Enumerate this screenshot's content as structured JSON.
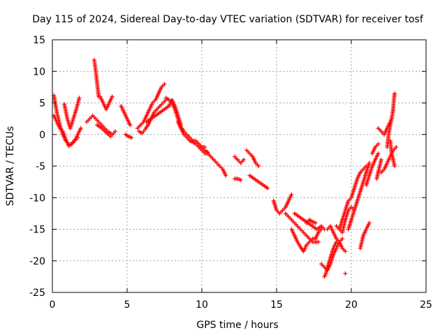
{
  "chart_data": {
    "type": "scatter",
    "title": "Day 115 of 2024, Sidereal Day-to-day VTEC variation (SDTVAR) for receiver tosf",
    "xlabel": "GPS time / hours",
    "ylabel": "SDTVAR / TECUs",
    "xlim": [
      0,
      25
    ],
    "ylim": [
      -25,
      15
    ],
    "xticks": [
      0,
      5,
      10,
      15,
      20,
      25
    ],
    "yticks": [
      -25,
      -20,
      -15,
      -10,
      -5,
      0,
      5,
      10,
      15
    ],
    "grid": true,
    "marker": "+",
    "color": "#ff0000",
    "series": [
      {
        "name": "s1",
        "x": [
          0.1,
          0.3,
          0.5,
          0.7,
          0.9,
          1.1,
          1.3,
          1.5,
          1.7
        ],
        "y": [
          6.2,
          3.5,
          1.5,
          0.0,
          -1.0,
          -1.6,
          -1.5,
          -1.0,
          -0.5
        ]
      },
      {
        "name": "s2",
        "x": [
          0.1,
          0.3,
          0.5,
          0.7,
          0.9,
          1.1,
          1.3,
          1.6,
          1.9
        ],
        "y": [
          3.0,
          2.0,
          1.0,
          0.5,
          -0.8,
          -1.8,
          -1.5,
          -0.5,
          1.0
        ]
      },
      {
        "name": "s3",
        "x": [
          0.8,
          1.0,
          1.2,
          1.4,
          1.6,
          1.8
        ],
        "y": [
          4.8,
          2.5,
          1.0,
          2.5,
          4.0,
          5.8
        ]
      },
      {
        "name": "s4",
        "x": [
          2.3,
          2.5,
          2.7,
          2.9,
          3.1,
          3.3,
          3.5,
          3.7,
          3.9
        ],
        "y": [
          2.0,
          2.5,
          3.0,
          2.5,
          2.0,
          1.5,
          1.0,
          0.5,
          0.2
        ]
      },
      {
        "name": "s5",
        "x": [
          2.8,
          2.85,
          2.9,
          2.95,
          3.0,
          3.05,
          3.1
        ],
        "y": [
          11.8,
          11.0,
          10.0,
          9.0,
          8.0,
          7.0,
          6.0
        ]
      },
      {
        "name": "s6",
        "x": [
          3.2,
          3.4,
          3.6,
          3.8,
          4.0
        ],
        "y": [
          6.0,
          5.0,
          4.0,
          5.0,
          6.0
        ]
      },
      {
        "name": "s7",
        "x": [
          3.0,
          3.3,
          3.6,
          3.9,
          4.2
        ],
        "y": [
          1.5,
          1.0,
          0.3,
          -0.3,
          0.5
        ]
      },
      {
        "name": "s8",
        "x": [
          4.6,
          4.8,
          5.0,
          5.2
        ],
        "y": [
          4.5,
          3.5,
          2.5,
          1.5
        ]
      },
      {
        "name": "s9",
        "x": [
          4.9,
          5.1,
          5.3
        ],
        "y": [
          0.0,
          -0.3,
          -0.5
        ]
      },
      {
        "name": "s10",
        "x": [
          5.7,
          5.9,
          6.1,
          6.3,
          6.5,
          6.7,
          6.9,
          7.1,
          7.3,
          7.5
        ],
        "y": [
          1.0,
          1.5,
          2.0,
          3.0,
          4.0,
          5.0,
          5.5,
          6.5,
          7.5,
          8.0
        ]
      },
      {
        "name": "s11",
        "x": [
          5.8,
          6.0,
          6.2,
          6.4,
          6.6,
          6.8,
          7.0,
          7.2,
          7.4,
          7.6
        ],
        "y": [
          0.5,
          0.2,
          0.8,
          1.5,
          2.5,
          3.5,
          4.0,
          4.5,
          5.0,
          5.5
        ]
      },
      {
        "name": "s12",
        "x": [
          6.3,
          6.6,
          6.9,
          7.2,
          7.5,
          7.8,
          8.0,
          8.2,
          8.4,
          8.6
        ],
        "y": [
          2.0,
          2.5,
          3.0,
          3.5,
          4.0,
          4.5,
          5.5,
          4.5,
          3.0,
          1.5
        ]
      },
      {
        "name": "s13",
        "x": [
          7.6,
          7.8,
          8.0,
          8.2,
          8.4,
          8.6,
          8.8,
          9.0,
          9.2,
          9.4,
          9.6,
          9.8,
          10.0,
          10.2
        ],
        "y": [
          5.8,
          5.5,
          5.0,
          4.0,
          2.5,
          1.2,
          0.5,
          0.0,
          -0.5,
          -1.0,
          -1.0,
          -1.5,
          -2.0,
          -2.0
        ]
      },
      {
        "name": "s14",
        "x": [
          8.4,
          8.6,
          8.8,
          9.0,
          9.2,
          9.4,
          9.6,
          9.8,
          10.0,
          10.2,
          10.4
        ],
        "y": [
          2.0,
          1.0,
          0.0,
          -0.5,
          -1.0,
          -1.2,
          -1.5,
          -2.0,
          -2.5,
          -3.0,
          -3.0
        ]
      },
      {
        "name": "s15",
        "x": [
          10.4,
          10.6,
          10.8,
          11.0,
          11.2,
          11.4,
          11.6
        ],
        "y": [
          -3.0,
          -3.5,
          -4.0,
          -4.5,
          -5.0,
          -5.5,
          -6.5
        ]
      },
      {
        "name": "s16",
        "x": [
          12.2,
          12.4,
          12.6
        ],
        "y": [
          -7.0,
          -7.0,
          -7.2
        ]
      },
      {
        "name": "s17",
        "x": [
          12.2,
          12.4,
          12.6,
          12.8
        ],
        "y": [
          -3.5,
          -4.0,
          -4.5,
          -4.0
        ]
      },
      {
        "name": "s18",
        "x": [
          13.0,
          13.2,
          13.4,
          13.6,
          13.8
        ],
        "y": [
          -2.5,
          -3.0,
          -3.5,
          -4.5,
          -5.0
        ]
      },
      {
        "name": "s19",
        "x": [
          13.2,
          13.5,
          13.8,
          14.1,
          14.4
        ],
        "y": [
          -6.5,
          -7.0,
          -7.5,
          -8.0,
          -8.5
        ]
      },
      {
        "name": "s20",
        "x": [
          14.8,
          15.0,
          15.2,
          15.4,
          15.6,
          15.8,
          16.0
        ],
        "y": [
          -10.5,
          -12.0,
          -12.5,
          -12.0,
          -11.5,
          -10.5,
          -9.5
        ]
      },
      {
        "name": "s21",
        "x": [
          15.6,
          15.8,
          16.0,
          16.2,
          16.4,
          16.6,
          16.8,
          17.0,
          17.2,
          17.4,
          17.6,
          17.8
        ],
        "y": [
          -12.5,
          -13.0,
          -13.5,
          -14.0,
          -14.5,
          -15.0,
          -15.5,
          -16.0,
          -16.5,
          -17.0,
          -17.0,
          -17.0
        ]
      },
      {
        "name": "s22",
        "x": [
          16.0,
          16.2,
          16.4,
          16.6,
          16.8,
          17.0,
          17.2,
          17.4,
          17.6,
          17.8,
          18.0
        ],
        "y": [
          -15.0,
          -16.0,
          -17.0,
          -17.8,
          -18.5,
          -17.5,
          -17.0,
          -16.5,
          -16.5,
          -15.5,
          -15.0
        ]
      },
      {
        "name": "s23",
        "x": [
          16.2,
          16.5,
          16.8,
          17.1,
          17.4,
          17.7,
          18.0,
          18.2
        ],
        "y": [
          -12.5,
          -13.0,
          -13.5,
          -14.0,
          -14.5,
          -15.0,
          -14.5,
          -15.0
        ]
      },
      {
        "name": "s24",
        "x": [
          18.0,
          18.2,
          18.4,
          18.6,
          18.8,
          19.0,
          19.2,
          19.4
        ],
        "y": [
          -20.5,
          -21.0,
          -21.5,
          -20.5,
          -19.0,
          -18.0,
          -17.0,
          -16.5
        ]
      },
      {
        "name": "s25",
        "x": [
          18.2,
          18.3,
          18.4,
          18.6,
          18.8,
          19.0
        ],
        "y": [
          -22.5,
          -22.0,
          -21.0,
          -19.5,
          -18.0,
          -17.0
        ]
      },
      {
        "name": "s26",
        "x": [
          18.4,
          18.6,
          18.8,
          19.0,
          19.2,
          19.4,
          19.6
        ],
        "y": [
          -15.0,
          -14.5,
          -15.5,
          -16.5,
          -17.0,
          -18.0,
          -18.5
        ]
      },
      {
        "name": "s27",
        "x": [
          19.2,
          19.4,
          19.6,
          19.8,
          20.0,
          20.2,
          20.4,
          20.6,
          20.8,
          21.0
        ],
        "y": [
          -15.0,
          -13.5,
          -12.0,
          -10.5,
          -10.0,
          -8.5,
          -7.0,
          -6.0,
          -5.5,
          -5.0
        ]
      },
      {
        "name": "s28",
        "x": [
          19.8,
          20.0,
          20.2,
          20.4,
          20.6,
          20.8,
          21.0,
          21.2
        ],
        "y": [
          -15.0,
          -13.5,
          -12.0,
          -10.5,
          -9.0,
          -7.5,
          -6.0,
          -4.5
        ]
      },
      {
        "name": "s29",
        "x": [
          19.0,
          19.2,
          19.4,
          19.6,
          19.8,
          20.0,
          20.2
        ],
        "y": [
          -14.5,
          -15.0,
          -15.5,
          -13.5,
          -12.0,
          -11.5,
          -12.0
        ]
      },
      {
        "name": "s30",
        "x": [
          20.6,
          20.7,
          20.8,
          20.9,
          21.0,
          21.1,
          21.2
        ],
        "y": [
          -18.0,
          -17.0,
          -16.0,
          -15.5,
          -15.0,
          -14.5,
          -14.0
        ]
      },
      {
        "name": "s31",
        "x": [
          21.0,
          21.2,
          21.4,
          21.6,
          21.8
        ],
        "y": [
          -8.0,
          -6.5,
          -5.0,
          -4.0,
          -3.0
        ]
      },
      {
        "name": "s32",
        "x": [
          21.4,
          21.6,
          21.8
        ],
        "y": [
          -3.0,
          -2.0,
          -1.5
        ]
      },
      {
        "name": "s33",
        "x": [
          21.7,
          21.8,
          21.9,
          22.0
        ],
        "y": [
          -7.0,
          -6.0,
          -5.0,
          -4.0
        ]
      },
      {
        "name": "s34",
        "x": [
          21.8,
          22.0,
          22.2,
          22.4,
          22.6,
          22.7
        ],
        "y": [
          1.0,
          0.5,
          0.0,
          1.0,
          2.0,
          2.5
        ]
      },
      {
        "name": "s35",
        "x": [
          22.0,
          22.2,
          22.4,
          22.6,
          22.8,
          23.0
        ],
        "y": [
          -6.0,
          -5.5,
          -4.5,
          -3.5,
          -2.5,
          -2.0
        ]
      },
      {
        "name": "s36",
        "x": [
          22.4,
          22.5,
          22.6,
          22.7,
          22.8,
          22.85,
          22.9
        ],
        "y": [
          -2.0,
          0.0,
          1.5,
          2.5,
          4.0,
          5.5,
          6.5
        ]
      },
      {
        "name": "s37",
        "x": [
          22.6,
          22.7,
          22.8,
          22.9
        ],
        "y": [
          -1.0,
          -3.0,
          -4.0,
          -5.0
        ]
      },
      {
        "name": "s38",
        "x": [
          19.6
        ],
        "y": [
          -22.0
        ]
      },
      {
        "name": "s39",
        "x": [
          9.8,
          10.0,
          10.2,
          10.4
        ],
        "y": [
          -1.5,
          -2.0,
          -2.5,
          -2.8
        ]
      },
      {
        "name": "s40",
        "x": [
          17.0,
          17.2,
          17.4,
          17.6
        ],
        "y": [
          -14.0,
          -13.5,
          -13.8,
          -14.0
        ]
      }
    ]
  }
}
